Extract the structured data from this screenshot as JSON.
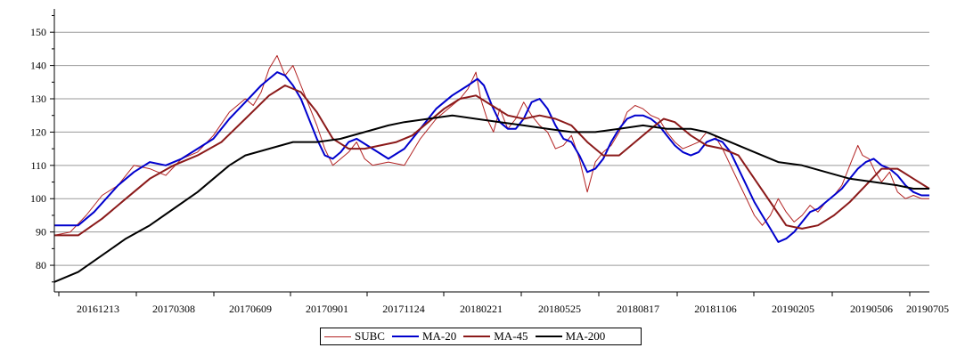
{
  "chart_data": {
    "type": "line",
    "y_ticks": [
      80,
      90,
      100,
      110,
      120,
      130,
      140,
      150
    ],
    "ylim": [
      72,
      157
    ],
    "x_ticks": [
      "20161213",
      "20170308",
      "20170609",
      "20170901",
      "20171124",
      "20180221",
      "20180525",
      "20180817",
      "20181106",
      "20190205",
      "20190506",
      "20190705"
    ],
    "grid": true,
    "legend_position": "bottom-center",
    "series": [
      {
        "name": "SUBC",
        "color": "#b22222",
        "width": 1,
        "points": [
          [
            0,
            89
          ],
          [
            10,
            90
          ],
          [
            20,
            95
          ],
          [
            30,
            101
          ],
          [
            40,
            104
          ],
          [
            50,
            110
          ],
          [
            60,
            109
          ],
          [
            70,
            107
          ],
          [
            80,
            112
          ],
          [
            90,
            114
          ],
          [
            100,
            119
          ],
          [
            110,
            126
          ],
          [
            120,
            130
          ],
          [
            125,
            128
          ],
          [
            130,
            132
          ],
          [
            135,
            139
          ],
          [
            140,
            143
          ],
          [
            145,
            137
          ],
          [
            150,
            140
          ],
          [
            155,
            134
          ],
          [
            160,
            128
          ],
          [
            165,
            122
          ],
          [
            170,
            115
          ],
          [
            175,
            110
          ],
          [
            180,
            112
          ],
          [
            185,
            114
          ],
          [
            190,
            117
          ],
          [
            195,
            112
          ],
          [
            200,
            110
          ],
          [
            210,
            111
          ],
          [
            220,
            110
          ],
          [
            230,
            118
          ],
          [
            240,
            124
          ],
          [
            250,
            128
          ],
          [
            255,
            130
          ],
          [
            260,
            133
          ],
          [
            265,
            138
          ],
          [
            268,
            130
          ],
          [
            272,
            124
          ],
          [
            276,
            120
          ],
          [
            280,
            127
          ],
          [
            285,
            121
          ],
          [
            290,
            124
          ],
          [
            295,
            129
          ],
          [
            300,
            125
          ],
          [
            305,
            122
          ],
          [
            310,
            120
          ],
          [
            315,
            115
          ],
          [
            320,
            116
          ],
          [
            325,
            119
          ],
          [
            330,
            112
          ],
          [
            335,
            102
          ],
          [
            340,
            111
          ],
          [
            345,
            114
          ],
          [
            350,
            116
          ],
          [
            355,
            120
          ],
          [
            360,
            126
          ],
          [
            365,
            128
          ],
          [
            370,
            127
          ],
          [
            375,
            125
          ],
          [
            380,
            124
          ],
          [
            385,
            120
          ],
          [
            390,
            117
          ],
          [
            395,
            115
          ],
          [
            400,
            116
          ],
          [
            405,
            117
          ],
          [
            410,
            120
          ],
          [
            415,
            119
          ],
          [
            420,
            115
          ],
          [
            425,
            110
          ],
          [
            430,
            105
          ],
          [
            435,
            100
          ],
          [
            440,
            95
          ],
          [
            445,
            92
          ],
          [
            450,
            95
          ],
          [
            455,
            100
          ],
          [
            460,
            96
          ],
          [
            465,
            93
          ],
          [
            470,
            95
          ],
          [
            475,
            98
          ],
          [
            480,
            96
          ],
          [
            485,
            99
          ],
          [
            490,
            101
          ],
          [
            495,
            104
          ],
          [
            500,
            110
          ],
          [
            505,
            116
          ],
          [
            508,
            113
          ],
          [
            512,
            112
          ],
          [
            516,
            108
          ],
          [
            520,
            105
          ],
          [
            525,
            108
          ],
          [
            530,
            102
          ],
          [
            535,
            100
          ],
          [
            540,
            101
          ],
          [
            545,
            100
          ],
          [
            550,
            100
          ]
        ]
      },
      {
        "name": "MA-20",
        "color": "#0000cd",
        "width": 2,
        "points": [
          [
            0,
            92
          ],
          [
            15,
            92
          ],
          [
            25,
            96
          ],
          [
            40,
            104
          ],
          [
            50,
            108
          ],
          [
            60,
            111
          ],
          [
            70,
            110
          ],
          [
            80,
            112
          ],
          [
            90,
            115
          ],
          [
            100,
            118
          ],
          [
            110,
            124
          ],
          [
            120,
            129
          ],
          [
            130,
            134
          ],
          [
            140,
            138
          ],
          [
            145,
            137
          ],
          [
            150,
            134
          ],
          [
            155,
            130
          ],
          [
            160,
            124
          ],
          [
            165,
            118
          ],
          [
            170,
            113
          ],
          [
            175,
            112
          ],
          [
            180,
            114
          ],
          [
            185,
            117
          ],
          [
            190,
            118
          ],
          [
            200,
            115
          ],
          [
            210,
            112
          ],
          [
            220,
            115
          ],
          [
            230,
            121
          ],
          [
            240,
            127
          ],
          [
            250,
            131
          ],
          [
            260,
            134
          ],
          [
            266,
            136
          ],
          [
            270,
            134
          ],
          [
            275,
            128
          ],
          [
            280,
            123
          ],
          [
            285,
            121
          ],
          [
            290,
            121
          ],
          [
            295,
            124
          ],
          [
            300,
            129
          ],
          [
            305,
            130
          ],
          [
            310,
            127
          ],
          [
            315,
            122
          ],
          [
            320,
            118
          ],
          [
            325,
            117
          ],
          [
            330,
            113
          ],
          [
            335,
            108
          ],
          [
            340,
            109
          ],
          [
            345,
            112
          ],
          [
            350,
            117
          ],
          [
            355,
            121
          ],
          [
            360,
            124
          ],
          [
            365,
            125
          ],
          [
            370,
            125
          ],
          [
            375,
            124
          ],
          [
            380,
            122
          ],
          [
            385,
            119
          ],
          [
            390,
            116
          ],
          [
            395,
            114
          ],
          [
            400,
            113
          ],
          [
            405,
            114
          ],
          [
            410,
            117
          ],
          [
            415,
            118
          ],
          [
            420,
            117
          ],
          [
            425,
            114
          ],
          [
            430,
            109
          ],
          [
            435,
            104
          ],
          [
            440,
            99
          ],
          [
            445,
            95
          ],
          [
            450,
            91
          ],
          [
            455,
            87
          ],
          [
            460,
            88
          ],
          [
            465,
            90
          ],
          [
            470,
            93
          ],
          [
            475,
            96
          ],
          [
            480,
            97
          ],
          [
            485,
            99
          ],
          [
            490,
            101
          ],
          [
            495,
            103
          ],
          [
            500,
            106
          ],
          [
            505,
            109
          ],
          [
            510,
            111
          ],
          [
            515,
            112
          ],
          [
            520,
            110
          ],
          [
            525,
            109
          ],
          [
            530,
            107
          ],
          [
            535,
            104
          ],
          [
            540,
            102
          ],
          [
            545,
            101
          ],
          [
            550,
            101
          ]
        ]
      },
      {
        "name": "MA-45",
        "color": "#8b1a1a",
        "width": 2,
        "points": [
          [
            0,
            89
          ],
          [
            15,
            89
          ],
          [
            30,
            94
          ],
          [
            45,
            100
          ],
          [
            60,
            106
          ],
          [
            75,
            110
          ],
          [
            90,
            113
          ],
          [
            105,
            117
          ],
          [
            120,
            124
          ],
          [
            135,
            131
          ],
          [
            145,
            134
          ],
          [
            155,
            132
          ],
          [
            165,
            126
          ],
          [
            175,
            118
          ],
          [
            185,
            115
          ],
          [
            195,
            115
          ],
          [
            205,
            116
          ],
          [
            215,
            117
          ],
          [
            225,
            119
          ],
          [
            235,
            123
          ],
          [
            245,
            127
          ],
          [
            255,
            130
          ],
          [
            265,
            131
          ],
          [
            275,
            128
          ],
          [
            285,
            125
          ],
          [
            295,
            124
          ],
          [
            305,
            125
          ],
          [
            315,
            124
          ],
          [
            325,
            122
          ],
          [
            335,
            117
          ],
          [
            345,
            113
          ],
          [
            355,
            113
          ],
          [
            365,
            117
          ],
          [
            375,
            121
          ],
          [
            383,
            124
          ],
          [
            390,
            123
          ],
          [
            400,
            119
          ],
          [
            410,
            116
          ],
          [
            420,
            115
          ],
          [
            430,
            113
          ],
          [
            440,
            106
          ],
          [
            450,
            99
          ],
          [
            460,
            92
          ],
          [
            470,
            91
          ],
          [
            480,
            92
          ],
          [
            490,
            95
          ],
          [
            500,
            99
          ],
          [
            510,
            104
          ],
          [
            520,
            109
          ],
          [
            530,
            109
          ],
          [
            540,
            106
          ],
          [
            550,
            103
          ]
        ]
      },
      {
        "name": "MA-200",
        "color": "#000000",
        "width": 2,
        "points": [
          [
            0,
            75
          ],
          [
            15,
            78
          ],
          [
            30,
            83
          ],
          [
            45,
            88
          ],
          [
            60,
            92
          ],
          [
            75,
            97
          ],
          [
            90,
            102
          ],
          [
            100,
            106
          ],
          [
            110,
            110
          ],
          [
            120,
            113
          ],
          [
            135,
            115
          ],
          [
            150,
            117
          ],
          [
            165,
            117
          ],
          [
            180,
            118
          ],
          [
            195,
            120
          ],
          [
            210,
            122
          ],
          [
            220,
            123
          ],
          [
            235,
            124
          ],
          [
            250,
            125
          ],
          [
            265,
            124
          ],
          [
            280,
            123
          ],
          [
            295,
            122
          ],
          [
            310,
            121
          ],
          [
            325,
            120
          ],
          [
            340,
            120
          ],
          [
            355,
            121
          ],
          [
            370,
            122
          ],
          [
            385,
            121
          ],
          [
            400,
            121
          ],
          [
            410,
            120
          ],
          [
            420,
            118
          ],
          [
            430,
            116
          ],
          [
            440,
            114
          ],
          [
            455,
            111
          ],
          [
            470,
            110
          ],
          [
            485,
            108
          ],
          [
            500,
            106
          ],
          [
            515,
            105
          ],
          [
            530,
            104
          ],
          [
            540,
            103
          ],
          [
            550,
            103
          ]
        ]
      }
    ]
  }
}
